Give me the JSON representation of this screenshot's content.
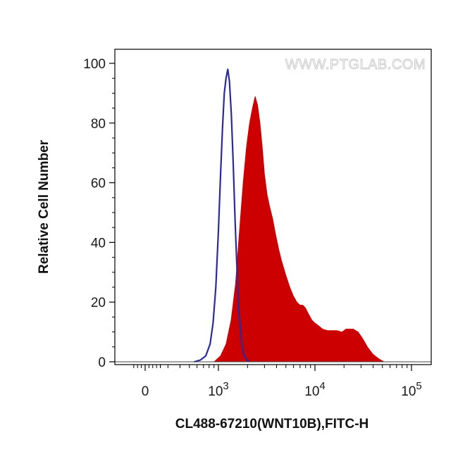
{
  "chart_data": {
    "type": "area",
    "title": "",
    "xlabel": "CL488-67210(WNT10B),FITC-H",
    "ylabel": "Relative Cell Number",
    "watermark": "WWW.PTGLAB.COM",
    "x_scale": "biexponential",
    "ylim": [
      0,
      100
    ],
    "y_ticks": [
      0,
      20,
      40,
      60,
      80,
      100
    ],
    "x_ticks": [
      {
        "value": 0,
        "base": "0",
        "exp": ""
      },
      {
        "value": 1000,
        "base": "10",
        "exp": "3"
      },
      {
        "value": 10000,
        "base": "10",
        "exp": "4"
      },
      {
        "value": 100000,
        "base": "10",
        "exp": "5"
      }
    ],
    "grid": false,
    "series": [
      {
        "style": "outline",
        "color": "#2a2a9c",
        "points": [
          [
            560,
            0
          ],
          [
            650,
            0.6
          ],
          [
            740,
            2
          ],
          [
            820,
            6
          ],
          [
            880,
            13
          ],
          [
            940,
            25
          ],
          [
            1000,
            44
          ],
          [
            1050,
            62
          ],
          [
            1100,
            78
          ],
          [
            1150,
            90
          ],
          [
            1200,
            95
          ],
          [
            1250,
            98
          ],
          [
            1300,
            94
          ],
          [
            1360,
            83
          ],
          [
            1420,
            67
          ],
          [
            1490,
            47
          ],
          [
            1560,
            30
          ],
          [
            1640,
            16
          ],
          [
            1730,
            7
          ],
          [
            1830,
            2.5
          ],
          [
            1950,
            0.8
          ],
          [
            2100,
            0
          ]
        ]
      },
      {
        "style": "filled",
        "color": "#cc0000",
        "points": [
          [
            900,
            0
          ],
          [
            1050,
            2
          ],
          [
            1200,
            6
          ],
          [
            1350,
            14
          ],
          [
            1500,
            26
          ],
          [
            1650,
            44
          ],
          [
            1800,
            60
          ],
          [
            1950,
            72
          ],
          [
            2100,
            80
          ],
          [
            2250,
            85
          ],
          [
            2400,
            89
          ],
          [
            2550,
            86
          ],
          [
            2700,
            80
          ],
          [
            2850,
            72
          ],
          [
            3000,
            63
          ],
          [
            3200,
            56
          ],
          [
            3400,
            52
          ],
          [
            3650,
            48
          ],
          [
            3900,
            43
          ],
          [
            4200,
            38
          ],
          [
            4500,
            34
          ],
          [
            5000,
            29
          ],
          [
            5500,
            25
          ],
          [
            6000,
            22
          ],
          [
            6500,
            20
          ],
          [
            7000,
            19
          ],
          [
            7500,
            19
          ],
          [
            8000,
            18
          ],
          [
            8600,
            16
          ],
          [
            9300,
            14
          ],
          [
            10000,
            13
          ],
          [
            11000,
            12
          ],
          [
            12000,
            11
          ],
          [
            13500,
            10.5
          ],
          [
            15000,
            10.5
          ],
          [
            17000,
            10.5
          ],
          [
            19000,
            10
          ],
          [
            21000,
            11
          ],
          [
            23000,
            11
          ],
          [
            25000,
            11
          ],
          [
            28000,
            10
          ],
          [
            31000,
            8
          ],
          [
            35000,
            5
          ],
          [
            40000,
            2.5
          ],
          [
            46000,
            1
          ],
          [
            52000,
            0
          ]
        ]
      }
    ]
  }
}
